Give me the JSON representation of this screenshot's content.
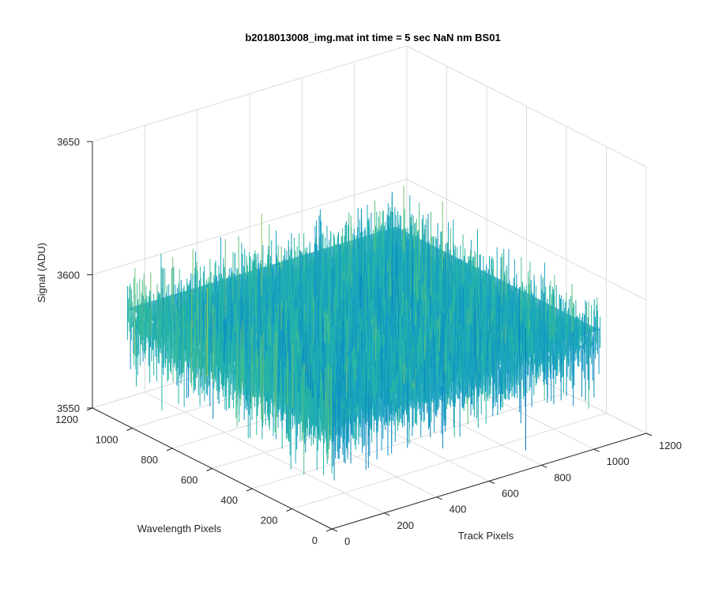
{
  "chart_data": {
    "type": "surface",
    "title": "b2018013008_img.mat int time = 5 sec  NaN nm BS01",
    "xlabel": "Track Pixels",
    "ylabel": "Wavelength Pixels",
    "zlabel": "Signal (ADU)",
    "xlim": [
      0,
      1200
    ],
    "ylim": [
      0,
      1200
    ],
    "zlim": [
      3550,
      3650
    ],
    "xticks": [
      "0",
      "200",
      "400",
      "600",
      "800",
      "1000",
      "1200"
    ],
    "yticks": [
      "0",
      "200",
      "400",
      "600",
      "800",
      "1000",
      "1200"
    ],
    "zticks": [
      "3550",
      "3600",
      "3650"
    ],
    "grid": true,
    "colormap": "parula",
    "surface": {
      "x_range": [
        0,
        1024
      ],
      "y_range": [
        0,
        1024
      ],
      "mean": 3590,
      "min": 3556,
      "max": 3632
    },
    "colors": {
      "low": "#0072bd",
      "mid": "#1fb6a6",
      "high": "#e8c74a",
      "axis": "#262626",
      "grid": "#dcdcdc"
    }
  }
}
